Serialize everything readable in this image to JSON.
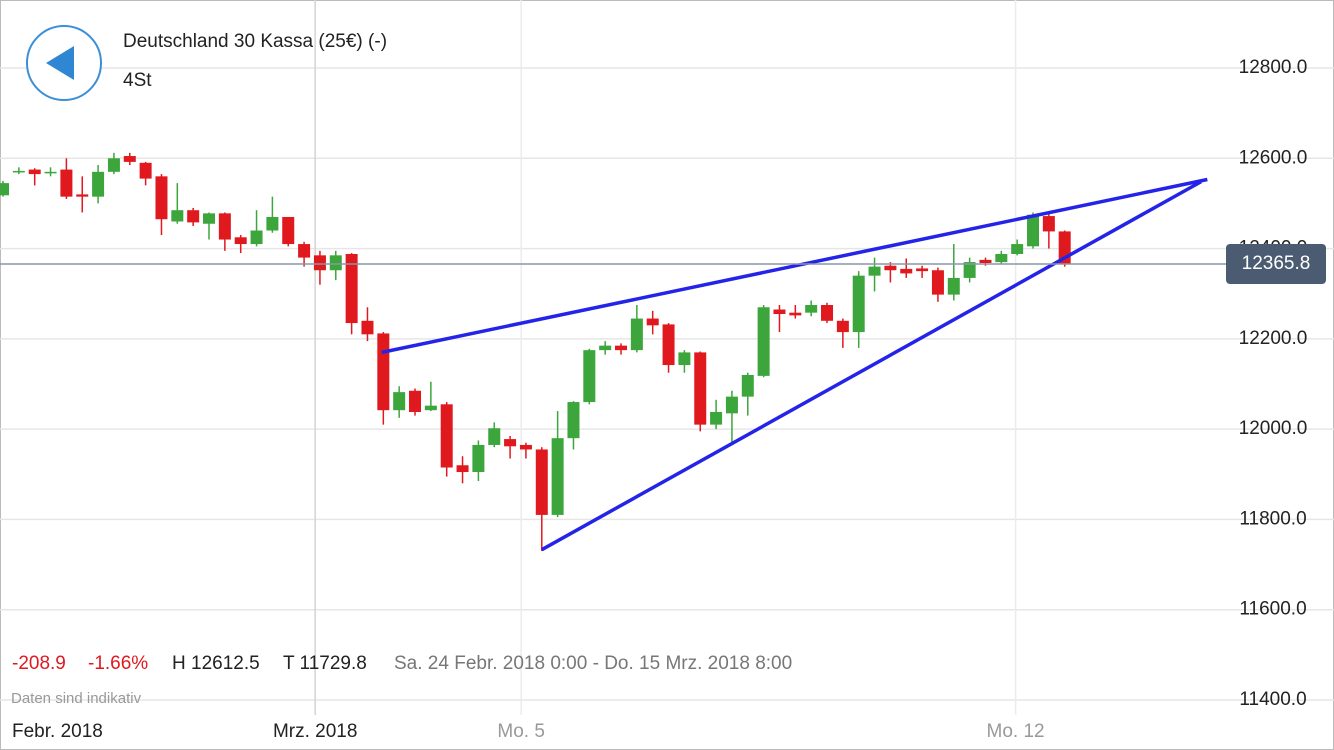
{
  "header": {
    "title": "Deutschland 30 Kassa (25€) (-)",
    "interval": "4St"
  },
  "stats": {
    "change": "-208.9",
    "change_pct": "-1.66%",
    "high": "H 12612.5",
    "low": "T 11729.8",
    "range": "Sa. 24 Febr. 2018 0:00 - Do. 15 Mrz. 2018 8:00",
    "note": "Daten sind indikativ"
  },
  "chart_data": {
    "type": "candlestick",
    "categories": [
      null,
      null,
      null,
      null,
      null,
      null,
      null,
      null,
      null,
      null,
      null,
      null,
      null,
      null,
      null,
      null,
      null,
      null,
      null,
      null,
      null,
      null,
      null,
      null,
      null,
      null,
      null,
      null,
      null,
      null,
      null,
      null,
      null,
      null,
      null,
      null,
      null,
      null,
      null,
      null,
      null,
      null,
      null,
      null,
      null,
      null,
      null,
      null,
      null,
      null,
      null,
      null,
      null,
      null,
      null,
      null,
      null,
      null,
      null,
      null,
      null,
      null,
      null,
      null,
      null,
      null,
      null,
      null
    ],
    "open": [
      12518,
      12570,
      12575,
      12568,
      12575,
      12520,
      12515,
      12570,
      12605,
      12590,
      12560,
      12460,
      12485,
      12455,
      12478,
      12425,
      12410,
      12440,
      12470,
      12410,
      12385,
      12352,
      12388,
      12240,
      12212,
      12042,
      12085,
      12042,
      12055,
      11920,
      11905,
      11965,
      11978,
      11965,
      11955,
      11810,
      11980,
      12060,
      12175,
      12185,
      12175,
      12245,
      12232,
      12142,
      12170,
      12010,
      12035,
      12072,
      12118,
      12265,
      12258,
      12258,
      12275,
      12240,
      12215,
      12340,
      12362,
      12355,
      12356,
      12352,
      12298,
      12335,
      12375,
      12370,
      12388,
      12405,
      12472,
      12438
    ],
    "high": [
      12550,
      12580,
      12578,
      12580,
      12600,
      12560,
      12585,
      12612,
      12612,
      12592,
      12565,
      12545,
      12490,
      12480,
      12480,
      12430,
      12485,
      12515,
      12470,
      12415,
      12395,
      12395,
      12390,
      12270,
      12215,
      12095,
      12090,
      12105,
      12060,
      11940,
      11975,
      12015,
      11985,
      11970,
      11960,
      12040,
      12062,
      12178,
      12195,
      12190,
      12275,
      12262,
      12235,
      12175,
      12172,
      12065,
      12085,
      12125,
      12275,
      12275,
      12275,
      12285,
      12280,
      12245,
      12350,
      12380,
      12370,
      12378,
      12362,
      12358,
      12410,
      12380,
      12380,
      12395,
      12420,
      12480,
      12478,
      12440
    ],
    "low": [
      12515,
      12565,
      12540,
      12560,
      12510,
      12480,
      12500,
      12565,
      12585,
      12540,
      12430,
      12455,
      12450,
      12420,
      12395,
      12390,
      12405,
      12435,
      12405,
      12360,
      12320,
      12330,
      12210,
      12195,
      12010,
      12025,
      12030,
      12040,
      11895,
      11880,
      11885,
      11960,
      11935,
      11935,
      11730,
      11805,
      11955,
      12055,
      12165,
      12165,
      12170,
      12210,
      12125,
      12125,
      11995,
      12000,
      11970,
      12030,
      12115,
      12215,
      12245,
      12250,
      12235,
      12180,
      12180,
      12305,
      12325,
      12335,
      12335,
      12282,
      12285,
      12325,
      12362,
      12365,
      12385,
      12400,
      12400,
      12360
    ],
    "close": [
      12545,
      12572,
      12565,
      12570,
      12515,
      12515,
      12570,
      12600,
      12592,
      12555,
      12465,
      12485,
      12458,
      12478,
      12420,
      12410,
      12440,
      12470,
      12410,
      12380,
      12352,
      12385,
      12235,
      12210,
      12042,
      12082,
      12038,
      12052,
      11915,
      11905,
      11965,
      12002,
      11962,
      11955,
      11810,
      11980,
      12060,
      12175,
      12185,
      12175,
      12245,
      12230,
      12142,
      12170,
      12010,
      12038,
      12072,
      12120,
      12270,
      12255,
      12252,
      12275,
      12240,
      12215,
      12340,
      12360,
      12352,
      12345,
      12350,
      12298,
      12335,
      12370,
      12368,
      12388,
      12410,
      12475,
      12438,
      12366
    ],
    "up_color": "#3ca63c",
    "down_color": "#e0191f",
    "current_price": 12365.8,
    "trendlines": [
      {
        "x": [
          23.9,
          76
        ],
        "y": [
          12170,
          12553
        ]
      },
      {
        "x": [
          34,
          75.6
        ],
        "y": [
          11733,
          12548
        ]
      }
    ],
    "trend_color": "#2424e8",
    "xlim": [
      -0.19,
      76.8
    ],
    "xticks": [
      {
        "value": 3.8,
        "label": "Febr. 2018"
      },
      {
        "value": 19.7,
        "label": "Mrz. 2018"
      },
      {
        "value": 32.7,
        "label": "Mo. 5"
      },
      {
        "value": 63.9,
        "label": "Mo. 12"
      }
    ],
    "ylim": [
      11400,
      12800
    ],
    "yticks": [
      {
        "value": 11400,
        "label": "11400.0"
      },
      {
        "value": 11600,
        "label": "11600.0"
      },
      {
        "value": 11800,
        "label": "11800.0"
      },
      {
        "value": 12000,
        "label": "12000.0"
      },
      {
        "value": 12200,
        "label": "12200.0"
      },
      {
        "value": 12400,
        "label": "12400.0"
      },
      {
        "value": 12600,
        "label": "12600.0"
      },
      {
        "value": 12800,
        "label": "12800.0"
      }
    ],
    "grid": true
  }
}
